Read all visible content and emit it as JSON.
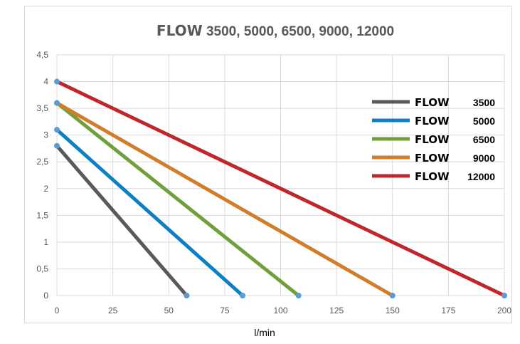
{
  "chart_data": {
    "type": "line",
    "title_strong": "FLOW",
    "title_rest": " 3500, 5000, 6500, 9000, 12000",
    "xlabel": "l/min",
    "ylabel": "",
    "xlim": [
      0,
      200
    ],
    "ylim": [
      0,
      4.5
    ],
    "x_ticks": [
      0,
      25,
      50,
      75,
      100,
      125,
      150,
      175,
      200
    ],
    "x_tick_labels": [
      "0",
      "25",
      "50",
      "75",
      "100",
      "125",
      "150",
      "175",
      "200"
    ],
    "y_ticks": [
      0,
      0.5,
      1,
      1.5,
      2,
      2.5,
      3,
      3.5,
      4,
      4.5
    ],
    "y_tick_labels": [
      "0",
      "0,5",
      "1",
      "1,5",
      "2",
      "2,5",
      "3",
      "3,5",
      "4",
      "4,5"
    ],
    "grid": true,
    "legend_position": "right",
    "marker_color": "#5b9bd5",
    "series": [
      {
        "name_strong": "FLOW",
        "name_num": "3500",
        "color": "#595959",
        "points": [
          [
            0,
            2.8
          ],
          [
            58,
            0
          ]
        ]
      },
      {
        "name_strong": "FLOW",
        "name_num": "5000",
        "color": "#0f7fc4",
        "points": [
          [
            0,
            3.1
          ],
          [
            83,
            0
          ]
        ]
      },
      {
        "name_strong": "FLOW",
        "name_num": "6500",
        "color": "#70a03c",
        "points": [
          [
            0,
            3.6
          ],
          [
            108,
            0
          ]
        ]
      },
      {
        "name_strong": "FLOW",
        "name_num": "9000",
        "color": "#d27d29",
        "points": [
          [
            0,
            3.6
          ],
          [
            150,
            0
          ]
        ]
      },
      {
        "name_strong": "FLOW",
        "name_num": "12000",
        "color": "#c0272d",
        "points": [
          [
            0,
            4.0
          ],
          [
            200,
            0
          ]
        ]
      }
    ]
  }
}
